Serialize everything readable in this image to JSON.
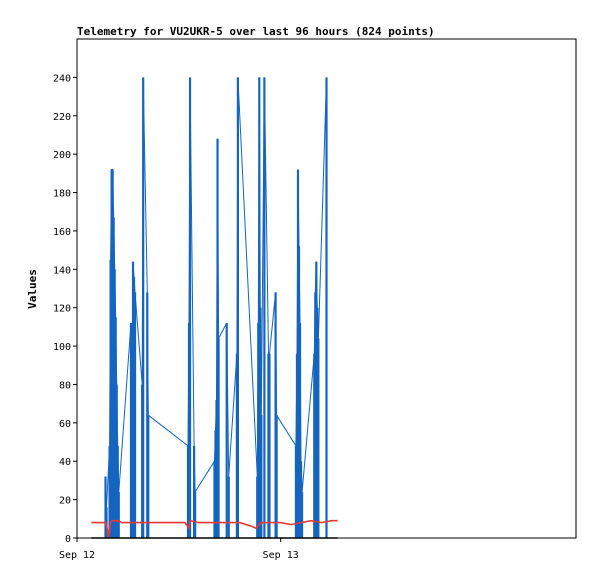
{
  "chart_data": {
    "type": "line",
    "title": "Telemetry for VU2UKR-5 over last 96 hours (824 points)",
    "xlabel": "",
    "ylabel": "Values",
    "ylim": [
      0,
      260
    ],
    "yticks": [
      0,
      20,
      40,
      60,
      80,
      100,
      120,
      140,
      160,
      180,
      200,
      220,
      240
    ],
    "xlim": [
      0,
      2.45
    ],
    "xticks": [
      {
        "label": "Sep 12",
        "x": 0
      },
      {
        "label": "Sep 13",
        "x": 1
      }
    ],
    "grid": false,
    "series": [
      {
        "color": "#1565c0",
        "mode": "spikes",
        "points": [
          [
            0.14,
            32
          ],
          [
            0.145,
            16
          ],
          [
            0.16,
            48
          ],
          [
            0.165,
            145
          ],
          [
            0.17,
            192
          ],
          [
            0.175,
            192
          ],
          [
            0.18,
            167
          ],
          [
            0.185,
            140
          ],
          [
            0.19,
            115
          ],
          [
            0.195,
            80
          ],
          [
            0.2,
            48
          ],
          [
            0.205,
            24
          ],
          [
            0.265,
            112
          ],
          [
            0.27,
            24
          ],
          [
            0.275,
            144
          ],
          [
            0.28,
            136
          ],
          [
            0.285,
            128
          ],
          [
            0.32,
            80
          ],
          [
            0.325,
            240
          ],
          [
            0.345,
            128
          ],
          [
            0.35,
            64
          ],
          [
            0.545,
            48
          ],
          [
            0.55,
            112
          ],
          [
            0.555,
            240
          ],
          [
            0.575,
            48
          ],
          [
            0.58,
            24
          ],
          [
            0.675,
            40
          ],
          [
            0.68,
            56
          ],
          [
            0.685,
            72
          ],
          [
            0.69,
            208
          ],
          [
            0.695,
            104
          ],
          [
            0.735,
            112
          ],
          [
            0.745,
            32
          ],
          [
            0.785,
            96
          ],
          [
            0.79,
            240
          ],
          [
            0.885,
            32
          ],
          [
            0.89,
            112
          ],
          [
            0.895,
            240
          ],
          [
            0.9,
            120
          ],
          [
            0.905,
            64
          ],
          [
            0.92,
            240
          ],
          [
            0.94,
            96
          ],
          [
            0.945,
            96
          ],
          [
            0.975,
            128
          ],
          [
            0.98,
            64
          ],
          [
            1.075,
            48
          ],
          [
            1.08,
            96
          ],
          [
            1.085,
            192
          ],
          [
            1.09,
            152
          ],
          [
            1.095,
            112
          ],
          [
            1.1,
            40
          ],
          [
            1.105,
            24
          ],
          [
            1.165,
            96
          ],
          [
            1.17,
            128
          ],
          [
            1.175,
            144
          ],
          [
            1.18,
            120
          ],
          [
            1.185,
            104
          ],
          [
            1.225,
            240
          ]
        ]
      },
      {
        "color": "#e53935",
        "mode": "line",
        "points": [
          [
            0.07,
            8
          ],
          [
            0.12,
            8
          ],
          [
            0.14,
            8
          ],
          [
            0.15,
            4
          ],
          [
            0.155,
            0
          ],
          [
            0.16,
            4
          ],
          [
            0.165,
            8
          ],
          [
            0.17,
            9
          ],
          [
            0.2,
            9
          ],
          [
            0.22,
            8
          ],
          [
            0.26,
            8
          ],
          [
            0.3,
            8
          ],
          [
            0.35,
            8
          ],
          [
            0.4,
            8
          ],
          [
            0.5,
            8
          ],
          [
            0.53,
            8
          ],
          [
            0.55,
            5
          ],
          [
            0.555,
            9
          ],
          [
            0.6,
            8
          ],
          [
            0.65,
            8
          ],
          [
            0.7,
            8
          ],
          [
            0.75,
            8
          ],
          [
            0.8,
            8
          ],
          [
            0.86,
            6
          ],
          [
            0.88,
            5
          ],
          [
            0.9,
            8
          ],
          [
            0.95,
            8
          ],
          [
            1.0,
            8
          ],
          [
            1.05,
            7
          ],
          [
            1.1,
            8
          ],
          [
            1.15,
            9
          ],
          [
            1.2,
            8
          ],
          [
            1.25,
            9
          ],
          [
            1.28,
            9
          ]
        ]
      },
      {
        "color": "#000000",
        "mode": "line",
        "points": [
          [
            0.07,
            0
          ],
          [
            1.28,
            0
          ]
        ]
      }
    ]
  }
}
